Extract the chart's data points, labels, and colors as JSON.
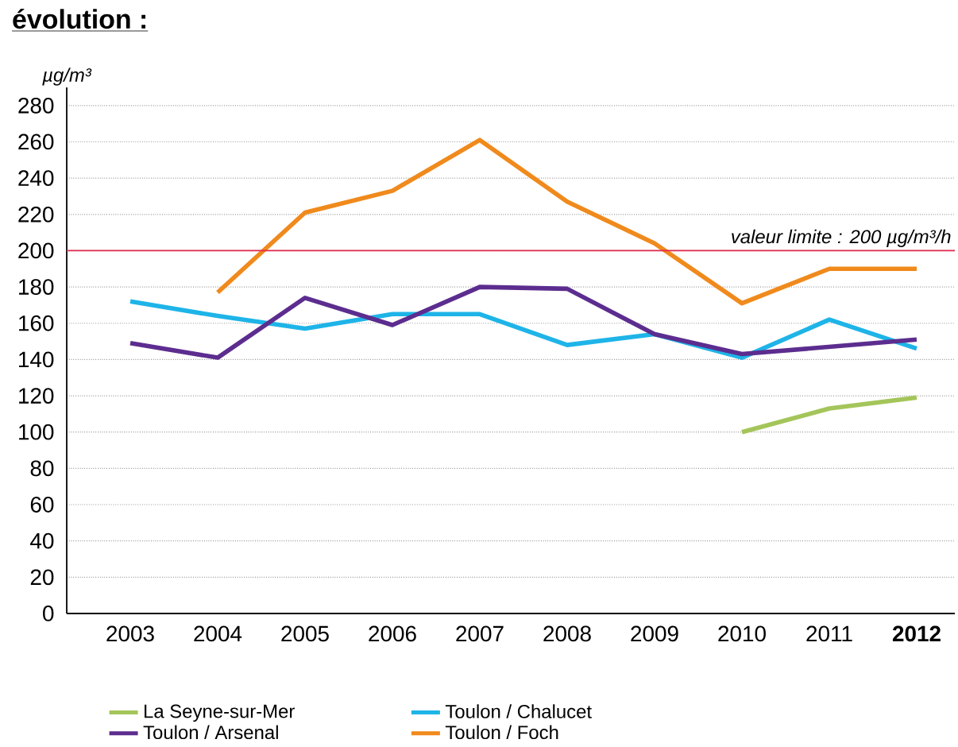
{
  "chart_data": {
    "type": "line",
    "title": "évolution :",
    "ylabel": "µg/m³",
    "categories": [
      "2003",
      "2004",
      "2005",
      "2006",
      "2007",
      "2008",
      "2009",
      "2010",
      "2011",
      "**2012**"
    ],
    "series": [
      {
        "name": "La Seyne-sur-Mer",
        "color": "#a4c55a",
        "values": [
          null,
          null,
          null,
          null,
          null,
          null,
          null,
          100,
          113,
          119
        ]
      },
      {
        "name": "Toulon / Chalucet",
        "color": "#1eb4e8",
        "values": [
          172,
          164,
          157,
          165,
          165,
          148,
          154,
          141,
          162,
          146
        ]
      },
      {
        "name": "Toulon / Arsenal",
        "color": "#5c2d8f",
        "values": [
          149,
          141,
          174,
          159,
          180,
          179,
          154,
          143,
          147,
          151
        ]
      },
      {
        "name": "Toulon / Foch",
        "color": "#f08a1c",
        "values": [
          null,
          177,
          221,
          233,
          261,
          227,
          204,
          171,
          190,
          190
        ]
      }
    ],
    "ylim": [
      0,
      290
    ],
    "yticks": [
      0,
      20,
      40,
      60,
      80,
      100,
      120,
      140,
      160,
      180,
      200,
      220,
      240,
      260,
      280
    ],
    "ref_lines": [
      {
        "axis": "y",
        "value": 200,
        "label": "valeur limite : 200 µg/m³/h",
        "color": "#e0284b"
      }
    ],
    "grid": "y",
    "legend": "bottom",
    "marker": "none",
    "line_style": "solid"
  }
}
